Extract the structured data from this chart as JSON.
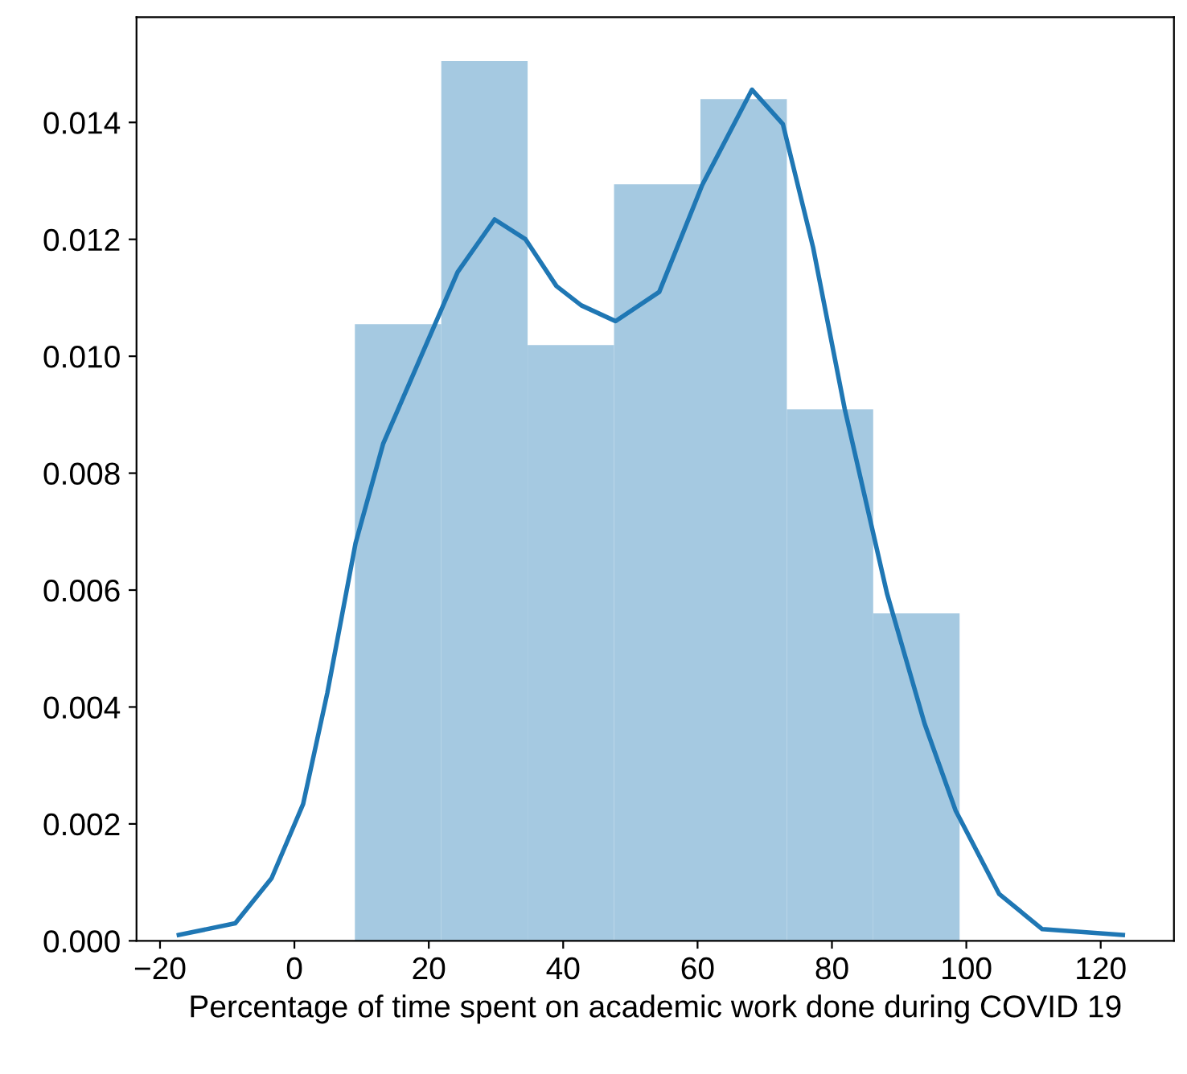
{
  "chart_data": {
    "type": "histogram",
    "xlabel": "Percentage of time spent on academic work done during COVID 19",
    "bins": [
      9,
      21.86,
      34.71,
      47.57,
      60.43,
      73.29,
      86.14,
      99
    ],
    "values": [
      0.01055,
      0.01505,
      0.01019,
      0.01294,
      0.0144,
      0.00909,
      0.0056
    ],
    "color": "#a5c9e1",
    "series": [
      {
        "type": "line",
        "color": "#1f77b4",
        "x": [
          -17.2,
          -8.8,
          -3.4,
          1.3,
          4.9,
          9.1,
          13.2,
          18.7,
          24.3,
          29.8,
          34.4,
          39,
          42.7,
          47.8,
          54.3,
          60.7,
          68.1,
          72.7,
          77.2,
          81.9,
          88.2,
          93.8,
          98.4,
          104.9,
          111.3,
          123.3
        ],
        "values": [
          0.0001,
          0.0003,
          0.00107,
          0.00234,
          0.00424,
          0.0068,
          0.0085,
          0.00996,
          0.01144,
          0.01234,
          0.012,
          0.0112,
          0.01087,
          0.0106,
          0.0111,
          0.01293,
          0.01456,
          0.01397,
          0.01186,
          0.0091,
          0.00594,
          0.00371,
          0.00223,
          0.0008,
          0.0002,
          0.0001
        ]
      }
    ],
    "xlim": [
      -23.5,
      130.9
    ],
    "ylim": [
      0,
      0.0158
    ],
    "xticks": [
      {
        "value": -20,
        "label": "−20"
      },
      0,
      20,
      40,
      60,
      80,
      100,
      120
    ],
    "yticks": [
      {
        "value": 0,
        "label": "0.000"
      },
      {
        "value": 0.002,
        "label": "0.002"
      },
      {
        "value": 0.004,
        "label": "0.004"
      },
      {
        "value": 0.006,
        "label": "0.006"
      },
      {
        "value": 0.008,
        "label": "0.008"
      },
      {
        "value": 0.01,
        "label": "0.010"
      },
      {
        "value": 0.012,
        "label": "0.012"
      },
      {
        "value": 0.014,
        "label": "0.014"
      }
    ],
    "grid": false
  }
}
